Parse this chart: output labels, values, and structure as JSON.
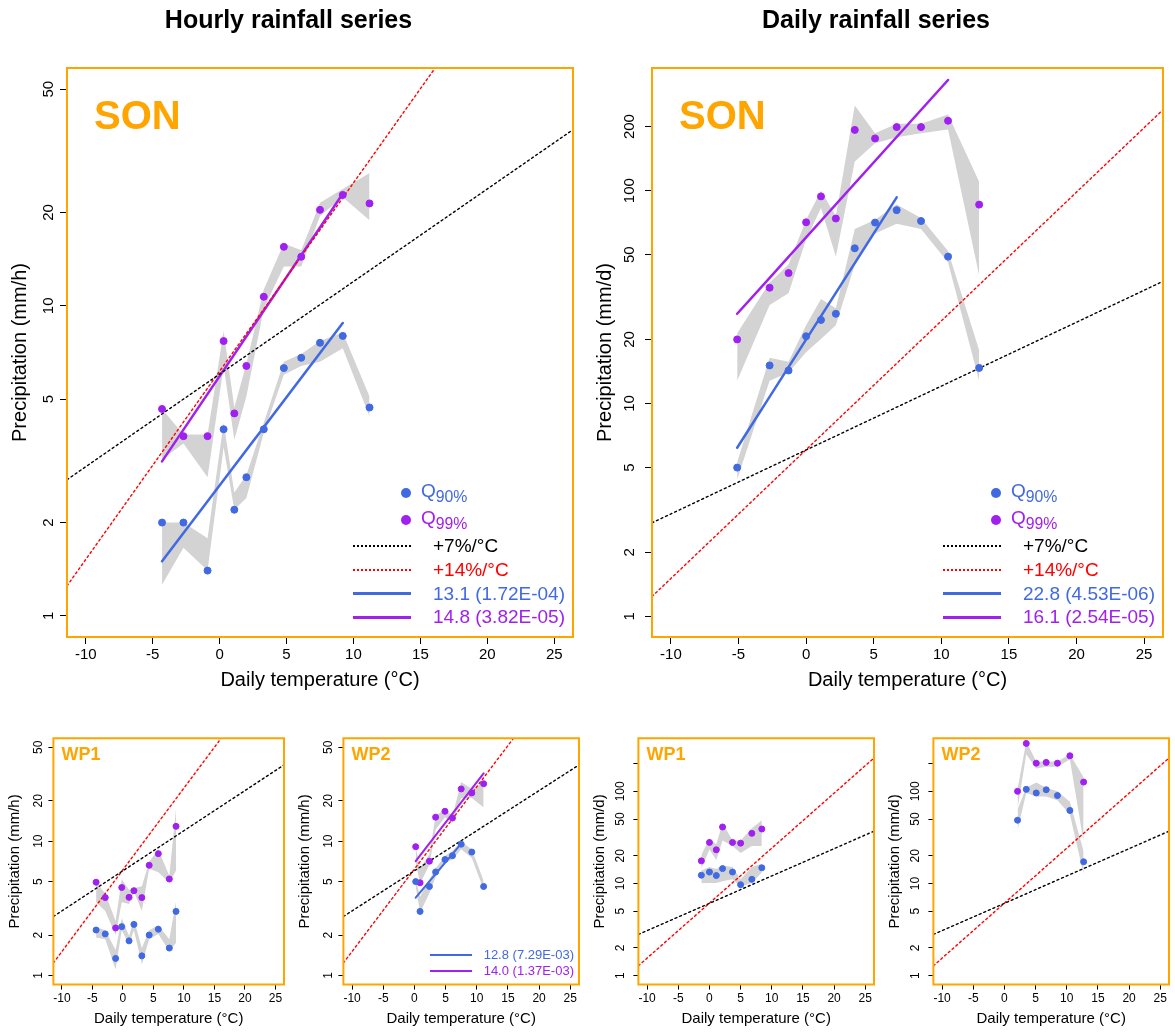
{
  "chart_data": [
    {
      "type": "scatter",
      "title": "Hourly rainfall series",
      "xlabel": "Daily temperature (°C)",
      "ylabel": "Precipitation (mm/h)",
      "annotations": [
        "SON"
      ],
      "log": "y",
      "xlim": [
        -11.4,
        26.4
      ],
      "xticks": [
        -10,
        -5,
        0,
        5,
        10,
        15,
        20,
        25
      ],
      "ylim": [
        0.855,
        58.5
      ],
      "yticks": [
        1,
        2,
        5,
        10,
        20,
        50
      ],
      "grid": false,
      "legend": "bottom right",
      "marker": "circle",
      "series": [
        {
          "name": "Q$_{90%}$",
          "type": "scatter",
          "color": "#4169e1",
          "x": [
            -4.3,
            -2.7,
            -0.9,
            0.3,
            1.1,
            2.0,
            3.3,
            4.8,
            6.1,
            7.5,
            9.2,
            11.2
          ],
          "values": [
            2.0,
            2.0,
            1.4,
            4.0,
            2.2,
            2.8,
            4.0,
            6.3,
            6.8,
            7.6,
            8.0,
            4.7
          ],
          "lower": [
            1.26,
            1.66,
            1.4,
            3.5,
            2.2,
            2.4,
            3.9,
            6.0,
            6.4,
            6.6,
            7.3,
            4.4
          ],
          "upper": [
            2.0,
            2.0,
            1.78,
            4.2,
            2.5,
            2.85,
            4.2,
            6.6,
            7.0,
            7.7,
            8.2,
            5.1
          ]
        },
        {
          "name": "Q$_{99%}$",
          "type": "scatter",
          "color": "#a020f0",
          "x": [
            -4.3,
            -2.7,
            -0.9,
            0.3,
            1.1,
            2.0,
            3.3,
            4.8,
            6.1,
            7.5,
            9.2,
            11.2
          ],
          "values": [
            4.65,
            3.8,
            3.8,
            7.7,
            4.5,
            6.4,
            10.7,
            15.5,
            14.4,
            20.4,
            22.8,
            21.4
          ],
          "lower": [
            3.2,
            3.6,
            2.8,
            6.4,
            3.7,
            5.1,
            9.8,
            13.4,
            13.4,
            19.5,
            22.4,
            18.9
          ],
          "upper": [
            4.65,
            3.85,
            3.85,
            8.3,
            4.7,
            6.5,
            11.3,
            15.9,
            15.1,
            21.5,
            23.8,
            26.8
          ]
        },
        {
          "name": "+7%/°C",
          "type": "line",
          "color": "#000000",
          "line_style": "dotted",
          "marker": "none",
          "x": [
            -11.4,
            26.4
          ],
          "values": [
            2.75,
            37
          ]
        },
        {
          "name": "+14%/°C",
          "type": "line",
          "color": "#ff0000",
          "line_style": "dotted",
          "marker": "none",
          "x": [
            -11.4,
            16.1
          ],
          "values": [
            1.25,
            58.5
          ]
        },
        {
          "name": "13.1 (1.72E-04)",
          "type": "line",
          "color": "#4169e1",
          "marker": "none",
          "x": [
            -4.3,
            9.2
          ],
          "values": [
            1.5,
            8.8
          ]
        },
        {
          "name": "14.8 (3.82E-05)",
          "type": "line",
          "color": "#a020f0",
          "marker": "none",
          "x": [
            -4.3,
            9.2
          ],
          "values": [
            3.15,
            23
          ]
        }
      ]
    },
    {
      "type": "scatter",
      "title": "Daily rainfall series",
      "xlabel": "Daily temperature (°C)",
      "ylabel": "Precipitation (mm/d)",
      "annotations": [
        "SON"
      ],
      "log": "y",
      "xlim": [
        -11.4,
        26.4
      ],
      "xticks": [
        -10,
        -5,
        0,
        5,
        10,
        15,
        20,
        25
      ],
      "ylim": [
        0.8,
        377
      ],
      "yticks": [
        1,
        2,
        5,
        10,
        20,
        50,
        100,
        200
      ],
      "grid": false,
      "legend": "bottom right",
      "marker": "circle",
      "series": [
        {
          "name": "Q$_{90%}$",
          "type": "scatter",
          "color": "#4169e1",
          "x": [
            -5.1,
            -2.7,
            -1.3,
            0,
            1.1,
            2.2,
            3.6,
            5.1,
            6.7,
            8.5,
            10.5,
            12.8
          ],
          "values": [
            5.0,
            15.1,
            14.3,
            20.7,
            24.7,
            26.4,
            53.6,
            70.8,
            81,
            72,
            49,
            14.7
          ],
          "lower": [
            4.4,
            12.8,
            14.0,
            17.4,
            20.1,
            23.3,
            45,
            63,
            70,
            66,
            46,
            12.8
          ],
          "upper": [
            5.3,
            16.4,
            15.7,
            23.3,
            31,
            28,
            66,
            73,
            86,
            74.5,
            52,
            17.8
          ]
        },
        {
          "name": "Q$_{99%}$",
          "type": "scatter",
          "color": "#a020f0",
          "x": [
            -5.1,
            -2.7,
            -1.3,
            0,
            1.1,
            2.2,
            3.6,
            5.1,
            6.7,
            8.5,
            10.5,
            12.8
          ],
          "values": [
            20,
            35,
            41,
            71,
            94,
            74,
            193,
            176,
            199,
            199,
            213,
            86
          ],
          "lower": [
            12.8,
            29,
            33,
            59,
            83,
            49,
            137,
            167,
            178,
            186,
            194,
            40
          ],
          "upper": [
            21.4,
            37,
            45,
            73,
            100,
            76,
            251,
            186,
            206,
            206,
            228,
            110
          ]
        },
        {
          "name": "+7%/°C",
          "type": "line",
          "color": "#000000",
          "line_style": "dotted",
          "marker": "none",
          "x": [
            -11.4,
            26.4
          ],
          "values": [
            2.75,
            37.5
          ]
        },
        {
          "name": "+14%/°C",
          "type": "line",
          "color": "#ff0000",
          "line_style": "dotted",
          "marker": "none",
          "x": [
            -11.4,
            26.4
          ],
          "values": [
            1.24,
            240
          ]
        },
        {
          "name": "22.8 (4.53E-06)",
          "type": "line",
          "color": "#4169e1",
          "marker": "none",
          "x": [
            -5.1,
            6.7
          ],
          "values": [
            6.2,
            93
          ]
        },
        {
          "name": "16.1 (2.54E-05)",
          "type": "line",
          "color": "#a020f0",
          "marker": "none",
          "x": [
            -5.1,
            10.5
          ],
          "values": [
            26.4,
            331
          ]
        }
      ]
    },
    {
      "type": "scatter",
      "xlabel": "Daily temperature (°C)",
      "ylabel": "Precipitation (mm/h)",
      "annotations": [
        "WP1"
      ],
      "log": "y",
      "xlim": [
        -11.4,
        26.4
      ],
      "xticks": [
        -10,
        -5,
        0,
        5,
        10,
        15,
        20,
        25
      ],
      "ylim": [
        0.855,
        58.5
      ],
      "yticks": [
        1,
        2,
        5,
        10,
        20,
        50
      ],
      "grid": false,
      "marker": "circle",
      "series": [
        {
          "type": "scatter",
          "color": "#4169e1",
          "x": [
            -4.4,
            -2.9,
            -1.2,
            -0.2,
            1.0,
            1.8,
            3.1,
            4.3,
            5.8,
            7.6,
            8.7
          ],
          "values": [
            2.18,
            2.04,
            1.34,
            2.31,
            1.81,
            2.4,
            1.4,
            2.0,
            2.21,
            1.6,
            3.0
          ],
          "lower": [
            1.92,
            1.86,
            1.11,
            2.17,
            1.7,
            2.17,
            1.21,
            1.86,
            2.04,
            1.51,
            1.75
          ],
          "upper": [
            2.3,
            2.17,
            1.55,
            2.67,
            1.98,
            2.6,
            1.6,
            2.17,
            2.37,
            1.86,
            3.55
          ]
        },
        {
          "type": "scatter",
          "color": "#a020f0",
          "x": [
            -4.4,
            -2.9,
            -1.2,
            -0.2,
            1.0,
            1.8,
            3.1,
            4.3,
            5.8,
            7.6,
            8.7
          ],
          "values": [
            4.95,
            3.8,
            2.26,
            4.52,
            3.82,
            4.28,
            3.8,
            6.62,
            8.08,
            5.23,
            12.9
          ],
          "lower": [
            3.51,
            3.02,
            2.0,
            3.51,
            3.41,
            4.21,
            3.02,
            6.23,
            5.86,
            4.9,
            6.04
          ],
          "upper": [
            4.95,
            4.08,
            2.55,
            5.2,
            4.34,
            4.47,
            4.61,
            7.03,
            8.69,
            5.52,
            17.4
          ]
        },
        {
          "type": "line",
          "color": "#000000",
          "line_style": "dotted",
          "marker": "none",
          "x": [
            -11.4,
            26.4
          ],
          "values": [
            2.75,
            37
          ]
        },
        {
          "type": "line",
          "color": "#ff0000",
          "line_style": "dotted",
          "marker": "none",
          "x": [
            -11.4,
            16.1
          ],
          "values": [
            1.24,
            58.5
          ]
        }
      ]
    },
    {
      "type": "scatter",
      "xlabel": "Daily temperature (°C)",
      "ylabel": "Precipitation (mm/h)",
      "annotations": [
        "WP2"
      ],
      "log": "y",
      "xlim": [
        -11.4,
        26.4
      ],
      "xticks": [
        -10,
        -5,
        0,
        5,
        10,
        15,
        20,
        25
      ],
      "ylim": [
        0.855,
        58.5
      ],
      "yticks": [
        1,
        2,
        5,
        10,
        20,
        50
      ],
      "grid": false,
      "legend": "bottom right",
      "marker": "circle",
      "series": [
        {
          "type": "scatter",
          "color": "#4169e1",
          "x": [
            0.2,
            0.9,
            2.4,
            3.4,
            4.9,
            6.1,
            7.5,
            9.2,
            11.1
          ],
          "values": [
            5.0,
            3.0,
            4.6,
            5.9,
            7.3,
            7.8,
            9.5,
            8.3,
            4.6
          ],
          "lower": [
            4.6,
            2.94,
            4.1,
            5.4,
            6.9,
            7.3,
            8.7,
            7.5,
            4.36
          ],
          "upper": [
            5.2,
            3.86,
            5.2,
            6.3,
            7.75,
            8.5,
            9.9,
            8.7,
            5.07
          ]
        },
        {
          "type": "scatter",
          "color": "#a020f0",
          "x": [
            0.2,
            0.9,
            2.4,
            3.4,
            4.9,
            6.1,
            7.5,
            9.2,
            11.1
          ],
          "values": [
            9.1,
            4.9,
            7.1,
            15.1,
            16.7,
            14.9,
            24.5,
            22.9,
            26.8
          ],
          "lower": [
            7.1,
            4.8,
            6.7,
            12.2,
            15.1,
            13.8,
            21,
            21,
            17.8
          ],
          "upper": [
            9.1,
            6.3,
            8.0,
            15.5,
            17.3,
            15.5,
            27.6,
            24.5,
            27.6
          ]
        },
        {
          "type": "line",
          "color": "#000000",
          "line_style": "dotted",
          "marker": "none",
          "x": [
            -11.4,
            26.4
          ],
          "values": [
            2.75,
            37
          ]
        },
        {
          "type": "line",
          "color": "#ff0000",
          "line_style": "dotted",
          "marker": "none",
          "x": [
            -11.4,
            15.9
          ],
          "values": [
            1.24,
            58.5
          ]
        },
        {
          "name": "12.8 (7.29E-03)",
          "type": "line",
          "color": "#4169e1",
          "marker": "none",
          "x": [
            0.2,
            7.5
          ],
          "values": [
            3.8,
            9.6
          ]
        },
        {
          "name": "14.0 (1.37E-03)",
          "type": "line",
          "color": "#a020f0",
          "marker": "none",
          "x": [
            0.2,
            11.1
          ],
          "values": [
            7.1,
            32
          ]
        }
      ]
    },
    {
      "type": "scatter",
      "xlabel": "Daily temperature (°C)",
      "ylabel": "Precipitation (mm/d)",
      "annotations": [
        "WP1"
      ],
      "log": "y",
      "xlim": [
        -11.4,
        26.4
      ],
      "xticks": [
        -10,
        -5,
        0,
        5,
        10,
        15,
        20,
        25
      ],
      "ylim": [
        0.8,
        377
      ],
      "yticks": [
        1,
        2,
        5,
        10,
        20,
        50,
        100,
        {
          "value": 200,
          "label": null
        }
      ],
      "grid": false,
      "marker": "circle",
      "series": [
        {
          "type": "scatter",
          "color": "#4169e1",
          "x": [
            -1.3,
            0,
            1.1,
            2.1,
            3.7,
            5.0,
            6.8,
            8.4
          ],
          "values": [
            12.3,
            13.3,
            12.2,
            14.5,
            13.3,
            9.7,
            11.1,
            14.8
          ],
          "lower": [
            10.1,
            10.1,
            10.1,
            10.6,
            11.1,
            9.3,
            10.1,
            13.2
          ],
          "upper": [
            13.8,
            15.1,
            14.4,
            15.7,
            15.1,
            11.1,
            15.1,
            16.4
          ]
        },
        {
          "type": "scatter",
          "color": "#a020f0",
          "x": [
            -1.3,
            0,
            1.1,
            2.1,
            3.7,
            5.0,
            6.8,
            8.4
          ],
          "values": [
            17.6,
            27.9,
            23.2,
            41,
            27.9,
            27.4,
            35,
            39
          ],
          "lower": [
            14.4,
            23.4,
            18.0,
            29.2,
            25.5,
            21.4,
            25.5,
            25.5
          ],
          "upper": [
            20.5,
            30.5,
            26.7,
            45.3,
            29.2,
            29.2,
            39.7,
            48.6
          ]
        },
        {
          "type": "line",
          "color": "#000000",
          "line_style": "dotted",
          "marker": "none",
          "x": [
            -11.4,
            26.4
          ],
          "values": [
            2.8,
            37
          ]
        },
        {
          "type": "line",
          "color": "#ff0000",
          "line_style": "dotted",
          "marker": "none",
          "x": [
            -11.4,
            26.4
          ],
          "values": [
            1.28,
            230
          ]
        }
      ]
    },
    {
      "type": "scatter",
      "xlabel": "Daily temperature (°C)",
      "ylabel": "Precipitation (mm/d)",
      "annotations": [
        "WP2"
      ],
      "log": "y",
      "xlim": [
        -11.4,
        26.4
      ],
      "xticks": [
        -10,
        -5,
        0,
        5,
        10,
        15,
        20,
        25
      ],
      "ylim": [
        0.8,
        377
      ],
      "yticks": [
        1,
        2,
        5,
        10,
        20,
        50,
        100,
        {
          "value": 200,
          "label": null
        }
      ],
      "grid": false,
      "marker": "circle",
      "series": [
        {
          "type": "scatter",
          "color": "#4169e1",
          "x": [
            2.1,
            3.5,
            5.1,
            6.7,
            8.5,
            10.5,
            12.7
          ],
          "values": [
            48.6,
            105,
            96,
            104,
            90,
            62,
            17.2
          ],
          "lower": [
            38,
            96,
            88,
            88,
            80,
            56,
            12.6
          ],
          "upper": [
            64,
            109,
            125,
            109,
            100,
            77,
            22.4
          ]
        },
        {
          "type": "scatter",
          "color": "#a020f0",
          "x": [
            2.1,
            3.5,
            5.1,
            6.7,
            8.5,
            10.5,
            12.7
          ],
          "values": [
            100,
            331,
            202,
            206,
            202,
            243,
            126
          ],
          "lower": [
            65,
            252,
            177,
            185,
            185,
            221,
            28
          ],
          "upper": [
            105,
            349,
            211,
            211,
            211,
            252,
            142
          ]
        },
        {
          "type": "line",
          "color": "#000000",
          "line_style": "dotted",
          "marker": "none",
          "x": [
            -11.4,
            26.4
          ],
          "values": [
            2.8,
            37
          ]
        },
        {
          "type": "line",
          "color": "#ff0000",
          "line_style": "dotted",
          "marker": "none",
          "x": [
            -11.4,
            26.4
          ],
          "values": [
            1.28,
            230
          ]
        }
      ]
    }
  ]
}
